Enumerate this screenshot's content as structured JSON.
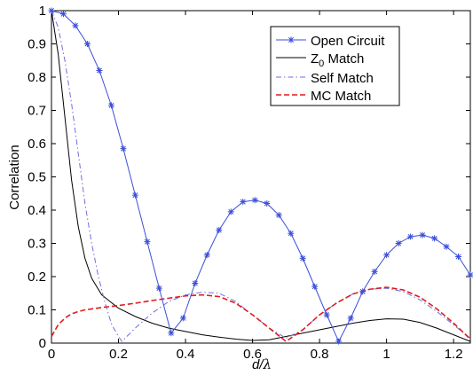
{
  "chart_data": {
    "type": "line",
    "xlabel": "d/λ",
    "xlabel_main": "d/",
    "xlabel_lambda": "λ",
    "ylabel": "Correlation",
    "xlim": [
      0,
      1.25
    ],
    "ylim": [
      0,
      1
    ],
    "xticks": [
      0,
      0.2,
      0.4,
      0.6,
      0.8,
      1,
      1.2
    ],
    "xtick_labels": [
      "0",
      "0.2",
      "0.4",
      "0.6",
      "0.8",
      "1",
      "1.2"
    ],
    "yticks": [
      0,
      0.1,
      0.2,
      0.3,
      0.4,
      0.5,
      0.6,
      0.7,
      0.8,
      0.9,
      1
    ],
    "ytick_labels": [
      "0",
      "0.1",
      "0.2",
      "0.3",
      "0.4",
      "0.5",
      "0.6",
      "0.7",
      "0.8",
      "0.9",
      "1"
    ],
    "grid": false,
    "legend_position": "top-right",
    "series": [
      {
        "name": "Open Circuit",
        "color": "#3b4fd8",
        "style": "solid",
        "marker": "asterisk",
        "x": [
          0,
          0.0357,
          0.0714,
          0.1071,
          0.1429,
          0.1786,
          0.2143,
          0.25,
          0.2857,
          0.3214,
          0.3571,
          0.3929,
          0.4286,
          0.4643,
          0.5,
          0.5357,
          0.5714,
          0.6071,
          0.6429,
          0.6786,
          0.7143,
          0.75,
          0.7857,
          0.8214,
          0.8571,
          0.8929,
          0.9286,
          0.9643,
          1.0,
          1.0357,
          1.0714,
          1.1071,
          1.1429,
          1.1786,
          1.2143,
          1.25
        ],
        "y": [
          1.0,
          0.99,
          0.955,
          0.9,
          0.82,
          0.715,
          0.585,
          0.445,
          0.305,
          0.165,
          0.03,
          0.075,
          0.18,
          0.265,
          0.34,
          0.395,
          0.425,
          0.43,
          0.42,
          0.385,
          0.33,
          0.255,
          0.17,
          0.085,
          0.005,
          0.075,
          0.155,
          0.215,
          0.265,
          0.3,
          0.32,
          0.325,
          0.315,
          0.29,
          0.26,
          0.205
        ]
      },
      {
        "name": "Z0 Match",
        "name_main": "Z",
        "name_sub": "0",
        "name_rest": " Match",
        "color": "#000000",
        "style": "solid",
        "x": [
          0,
          0.02,
          0.04,
          0.06,
          0.08,
          0.1,
          0.12,
          0.15,
          0.2,
          0.25,
          0.3,
          0.35,
          0.4,
          0.45,
          0.5,
          0.55,
          0.6,
          0.65,
          0.7,
          0.75,
          0.8,
          0.85,
          0.9,
          0.95,
          1.0,
          1.05,
          1.1,
          1.15,
          1.2,
          1.25
        ],
        "y": [
          1.0,
          0.87,
          0.68,
          0.49,
          0.35,
          0.255,
          0.195,
          0.145,
          0.105,
          0.08,
          0.06,
          0.045,
          0.035,
          0.025,
          0.018,
          0.012,
          0.008,
          0.01,
          0.02,
          0.03,
          0.04,
          0.05,
          0.06,
          0.068,
          0.073,
          0.072,
          0.062,
          0.045,
          0.025,
          0.005
        ]
      },
      {
        "name": "Self Match",
        "color": "#6e6ee0",
        "style": "dashdot",
        "x": [
          0,
          0.02,
          0.04,
          0.06,
          0.08,
          0.1,
          0.12,
          0.14,
          0.16,
          0.18,
          0.2,
          0.21,
          0.22,
          0.25,
          0.3,
          0.35,
          0.4,
          0.45,
          0.5,
          0.55,
          0.6,
          0.65,
          0.7,
          0.75,
          0.8,
          0.85,
          0.9,
          0.95,
          1.0,
          1.05,
          1.1,
          1.15,
          1.2,
          1.25
        ],
        "y": [
          1.0,
          0.95,
          0.85,
          0.72,
          0.57,
          0.42,
          0.3,
          0.2,
          0.12,
          0.055,
          0.02,
          0.005,
          0.015,
          0.045,
          0.09,
          0.125,
          0.145,
          0.153,
          0.15,
          0.125,
          0.085,
          0.045,
          0.015,
          0.04,
          0.085,
          0.12,
          0.148,
          0.162,
          0.165,
          0.155,
          0.13,
          0.095,
          0.055,
          0.015
        ]
      },
      {
        "name": "MC Match",
        "color": "#e21b1b",
        "style": "dashed",
        "x": [
          0,
          0.02,
          0.04,
          0.06,
          0.08,
          0.1,
          0.15,
          0.2,
          0.25,
          0.3,
          0.35,
          0.4,
          0.45,
          0.5,
          0.55,
          0.6,
          0.65,
          0.7,
          0.75,
          0.8,
          0.85,
          0.9,
          0.95,
          1.0,
          1.05,
          1.1,
          1.15,
          1.2,
          1.25
        ],
        "y": [
          0.02,
          0.055,
          0.075,
          0.088,
          0.095,
          0.1,
          0.107,
          0.113,
          0.12,
          0.128,
          0.135,
          0.142,
          0.145,
          0.14,
          0.12,
          0.085,
          0.045,
          0.005,
          0.04,
          0.085,
          0.12,
          0.148,
          0.162,
          0.168,
          0.16,
          0.138,
          0.103,
          0.06,
          0.012
        ]
      }
    ]
  }
}
